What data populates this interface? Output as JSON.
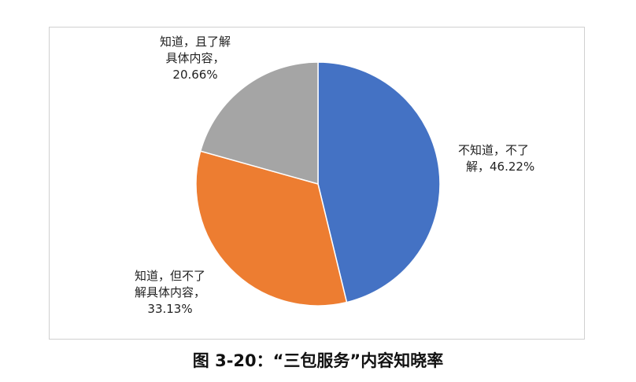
{
  "chart_data": {
    "type": "pie",
    "categories": [
      "不知道，不了解",
      "知道，但不了解具体内容",
      "知道，且了解具体内容"
    ],
    "values": [
      46.22,
      33.13,
      20.66
    ],
    "colors": [
      "#4472C4",
      "#ED7D31",
      "#A5A5A5"
    ],
    "data_labels": [
      [
        "不知道，不了",
        "解，46.22%"
      ],
      [
        "知道，但不了",
        "解具体内容，",
        "33.13%"
      ],
      [
        "知道，且了解",
        "具体内容，",
        "20.66%"
      ]
    ],
    "legend": "none"
  },
  "caption": "图 3-20：“三包服务”内容知晓率"
}
